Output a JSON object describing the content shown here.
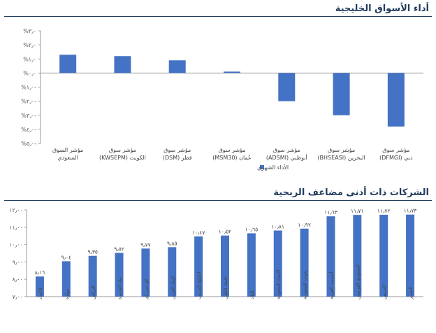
{
  "chart_data": [
    {
      "type": "bar",
      "title": "أداء الأسواق الخليجية",
      "categories": [
        [
          "مؤشر السوق",
          "السعودي"
        ],
        [
          "مؤشر سوق",
          "الكويت (KWSEPM)"
        ],
        [
          "مؤشر سوق",
          "قطر (DSM)"
        ],
        [
          "مؤشر سوق",
          "عُمان (MSM30)"
        ],
        [
          "مؤشر سوق",
          "أبوظبي (ADSMI)"
        ],
        [
          "مؤشر سوق",
          "البحرين (BHSEASI)"
        ],
        [
          "مؤشر سوق",
          "دبي (DFMGI)"
        ]
      ],
      "series": [
        {
          "name": "الأداء الشهري",
          "values": [
            1.3,
            1.2,
            0.9,
            0.1,
            -2.0,
            -3.0,
            -3.8
          ]
        }
      ],
      "ylim": [
        -5,
        3
      ],
      "ytick_values": [
        3,
        2,
        1,
        0,
        -1,
        -2,
        -3,
        -4,
        -5
      ],
      "ytick_labels": [
        "%٣٫٠",
        "%٢٫٠",
        "%١٫٠",
        "%٠٫٠",
        "%١٫٠-",
        "%٢٫٠-",
        "%٣٫٠-",
        "%٤٫٠-",
        "%٥٫٠-"
      ],
      "legend": "bottom-center",
      "grid": false,
      "color": "#4472c4"
    },
    {
      "type": "bar",
      "title": "الشركات ذات أدنى مضاعف الربحية",
      "categories": [
        "الاتحاد",
        "مهارة",
        "الرياض",
        "بنك الجزيرة",
        "إي سي إي",
        "البنك العربي",
        "الخليج للتدريب",
        "البنك الأهلي",
        "البلاد",
        "الإنماء السعودية",
        "بحوث السعودية",
        "أسمنت العربية",
        "السعودي الفرنسي",
        "الدريس",
        "التعمير"
      ],
      "values": [
        8.16,
        9.04,
        9.35,
        9.52,
        9.77,
        9.85,
        10.47,
        10.52,
        10.65,
        10.81,
        10.92,
        11.63,
        11.71,
        11.72,
        11.73
      ],
      "data_labels": [
        "٨٫١٦",
        "٩٫٠٤",
        "٩٫٣٥",
        "٩٫٥٢",
        "٩٫٧٧",
        "٩٫٨٥",
        "١٠٫٤٧",
        "١٠٫٥٢",
        "١٠٫٦٥",
        "١٠٫٨١",
        "١٠٫٩٢",
        "١١٫٦٣",
        "١١٫٧١",
        "١١٫٧٢",
        "١١٫٧٣"
      ],
      "ylim": [
        7,
        12
      ],
      "ytick_values": [
        12,
        11,
        10,
        9,
        8,
        7
      ],
      "ytick_labels": [
        "١٢٫٠٠",
        "١١٫٠٠",
        "١٠٫٠٠",
        "٩٫٠٠",
        "٨٫٠٠",
        "٧٫٠٠"
      ],
      "grid": false,
      "color": "#4472c4"
    }
  ]
}
